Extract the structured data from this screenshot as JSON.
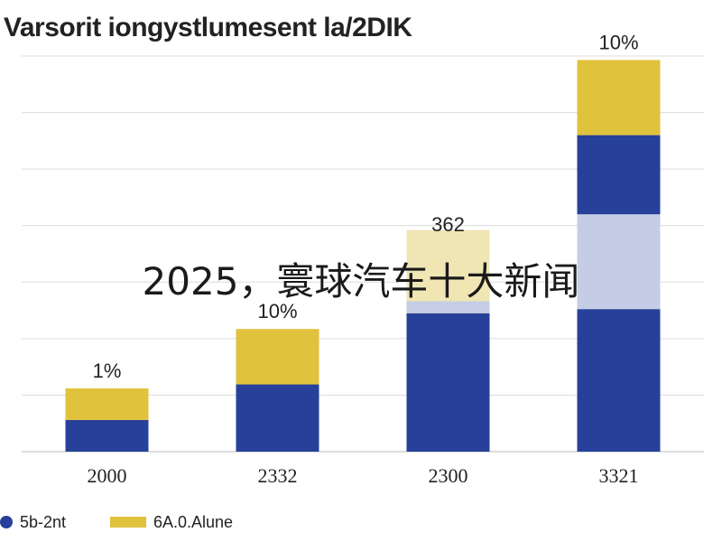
{
  "chart_data": {
    "type": "bar",
    "stacked": true,
    "title": "Varsorit iongystlumesent la/2DIK",
    "categories": [
      "2000",
      "2332",
      "2300",
      "3321"
    ],
    "series": [
      {
        "name": "5b-2nt",
        "color": "#27409a",
        "values": [
          8,
          17,
          35,
          80
        ]
      },
      {
        "name": "6A.0.Alune",
        "color": "#e0c23c",
        "values": [
          8,
          14,
          18,
          19
        ]
      }
    ],
    "light_segments": [
      {
        "category": "2300",
        "y0": 35,
        "y1": 38,
        "color": "#c5cde6"
      },
      {
        "category": "2300",
        "y0": 38,
        "y1": 56,
        "color": "#f0e6b4"
      },
      {
        "category": "3321",
        "y0": 36,
        "y1": 60,
        "color": "#c5cde6"
      }
    ],
    "bar_labels": [
      "1%",
      "10%",
      "362",
      "10%"
    ],
    "y_tick_labels": [
      "",
      "",
      "",
      "",
      "",
      "",
      "",
      ""
    ],
    "ylim": [
      0,
      100
    ],
    "grid": true,
    "legend_position": "bottom-left"
  },
  "overlay": {
    "caption": "2025，寰球汽车十大新闻"
  }
}
